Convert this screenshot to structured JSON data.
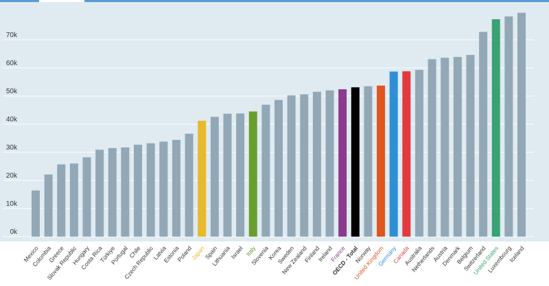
{
  "chart_data": {
    "type": "bar",
    "categories": [
      "Mexico",
      "Colombia",
      "Greece",
      "Slovak Republic",
      "Hungary",
      "Costa Rica",
      "Türkiye",
      "Portugal",
      "Chile",
      "Czech Republic",
      "Latvia",
      "Estonia",
      "Poland",
      "Japan",
      "Spain",
      "Lithuania",
      "Israel",
      "Italy",
      "Slovenia",
      "Korea",
      "Sweden",
      "New Zealand",
      "Finland",
      "Ireland",
      "France",
      "OECD - Total",
      "Norway",
      "United Kingdom",
      "Germany",
      "Canada",
      "Australia",
      "Netherlands",
      "Austria",
      "Denmark",
      "Belgium",
      "Switzerland",
      "United States",
      "Luxembourg",
      "Iceland"
    ],
    "values": [
      16400,
      22100,
      25700,
      26000,
      28200,
      30900,
      31500,
      31700,
      32700,
      33200,
      33800,
      34400,
      36600,
      41200,
      42600,
      43700,
      43800,
      44500,
      46900,
      48600,
      50200,
      50600,
      51500,
      52000,
      52400,
      53100,
      53500,
      53700,
      58700,
      58800,
      59300,
      63100,
      63600,
      63900,
      64600,
      72800,
      77300,
      78300,
      79600
    ],
    "highlighted": {
      "Japan": "#e8b92a",
      "Italy": "#6a9e2c",
      "France": "#8b3b8f",
      "OECD - Total": "#000000",
      "United Kingdom": "#e0541e",
      "Germany": "#2f8fd6",
      "Canada": "#e23a3e",
      "United States": "#3aa272"
    },
    "default_color": "#93a8b6",
    "yticks": [
      0,
      10000,
      20000,
      30000,
      40000,
      50000,
      60000,
      70000
    ],
    "ytick_labels": [
      "0k",
      "10k",
      "20k",
      "30k",
      "40k",
      "50k",
      "60k",
      "70k"
    ],
    "ylim": [
      0,
      81000
    ],
    "grid": true,
    "plot_background": "#dfeaf1",
    "title": "",
    "xlabel": "",
    "ylabel": ""
  }
}
